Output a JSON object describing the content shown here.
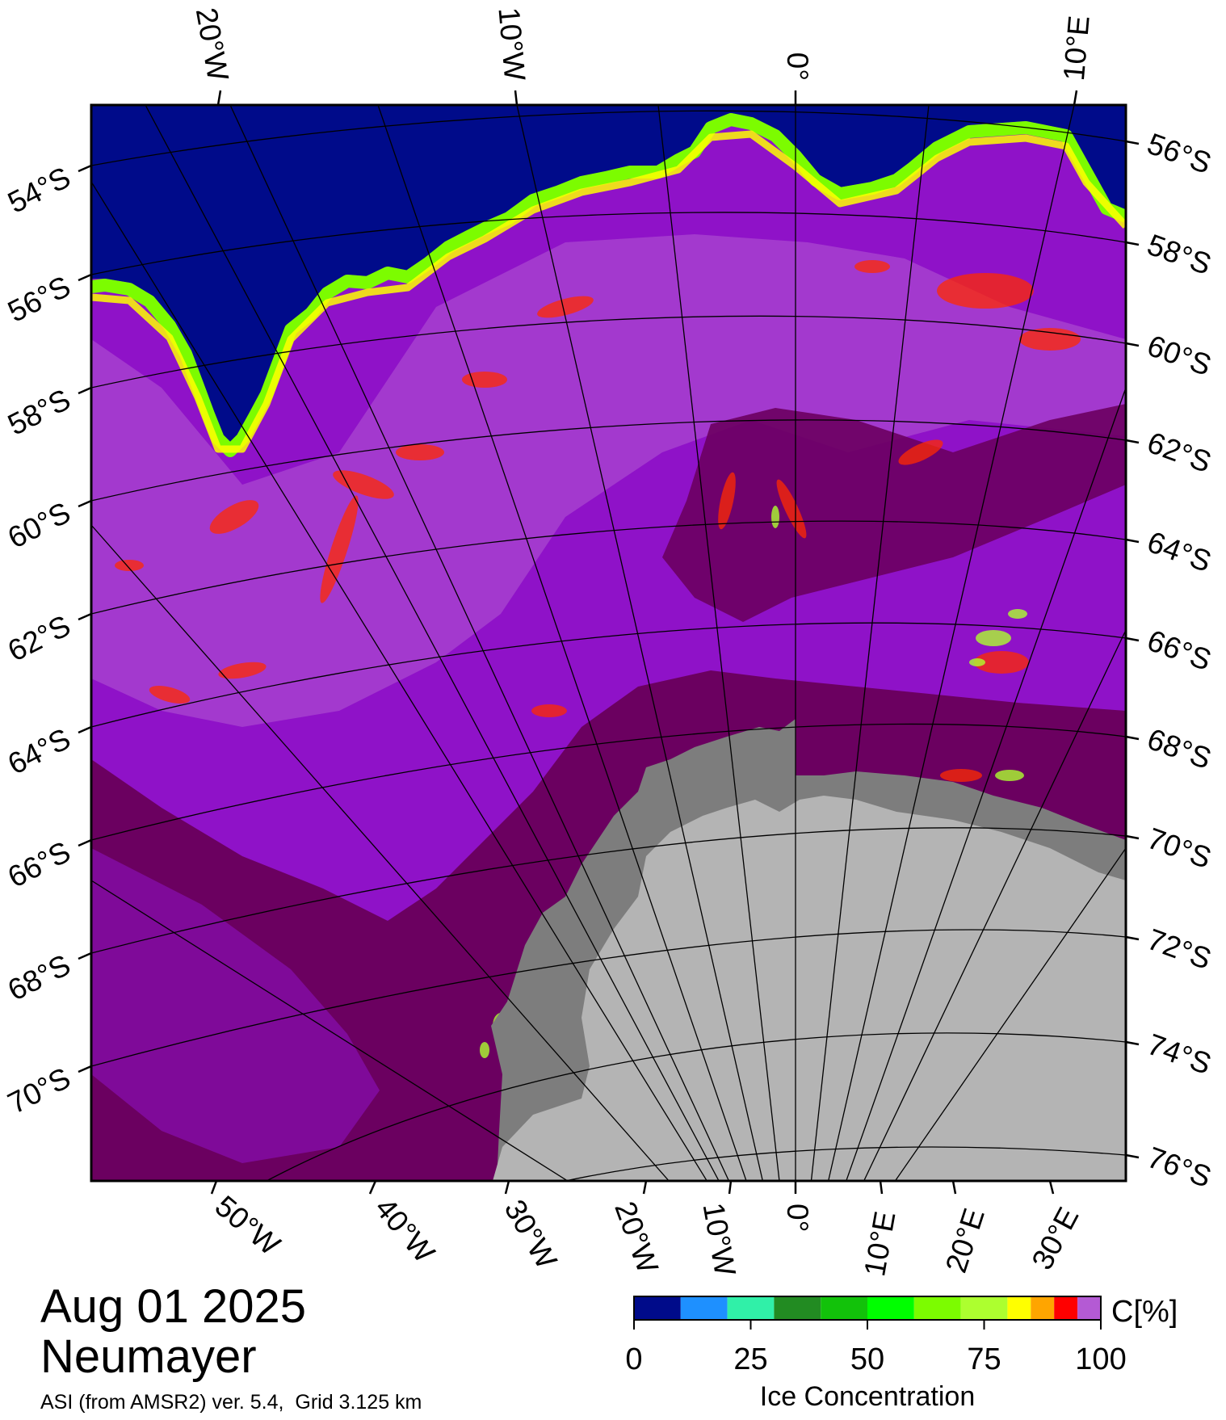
{
  "map": {
    "top_lon_labels": [
      "20°W",
      "10°W",
      "0°",
      "10°E"
    ],
    "bottom_lon_labels": [
      "50°W",
      "40°W",
      "30°W",
      "20°W",
      "10°W",
      "0°",
      "10°E",
      "20°E",
      "30°E"
    ],
    "left_lat_labels": [
      "54°S",
      "56°S",
      "58°S",
      "60°S",
      "62°S",
      "64°S",
      "66°S",
      "68°S",
      "70°S"
    ],
    "right_lat_labels": [
      "56°S",
      "58°S",
      "60°S",
      "62°S",
      "64°S",
      "66°S",
      "68°S",
      "70°S",
      "72°S",
      "74°S",
      "76°S"
    ],
    "colors": {
      "open_water": "#000b8a",
      "ice_high": "#6b0060",
      "ice_mid": "#8f12c8",
      "ice_light": "#b45ad4",
      "land": "#b4b4b4",
      "ice_shelf": "#7d7d7d"
    }
  },
  "colorbar": {
    "unit": "C[%]",
    "title": "Ice Concentration",
    "ticks": [
      "0",
      "25",
      "50",
      "75",
      "100"
    ],
    "colors": [
      "#000b8a",
      "#1e90ff",
      "#30f0a8",
      "#228b22",
      "#12c20a",
      "#00ff00",
      "#7cfc00",
      "#adff2f",
      "#ffff00",
      "#ffa500",
      "#ff0000",
      "#b45ad4",
      "#8f12c8"
    ]
  },
  "footer": {
    "date": "Aug 01 2025",
    "station": "Neumayer",
    "product": "ASI (from AMSR2) ver. 5.4,  Grid 3.125 km"
  }
}
